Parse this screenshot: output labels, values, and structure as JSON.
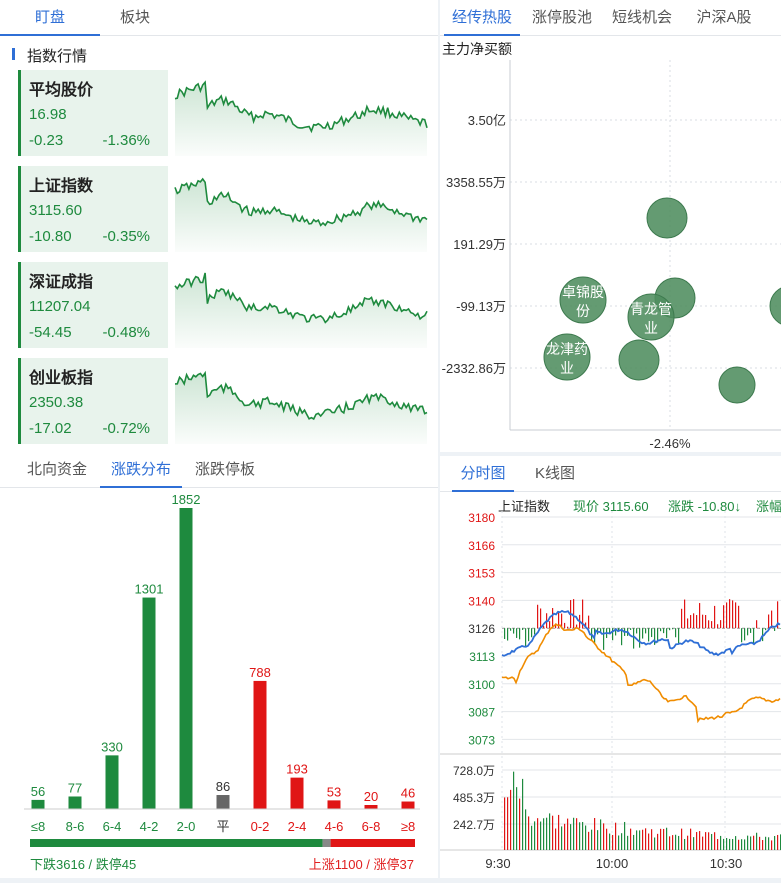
{
  "left_tabs": [
    "盯盘",
    "板块"
  ],
  "index_section_title": "指数行情",
  "indices": [
    {
      "name": "平均股价",
      "price": "16.98",
      "change": "-0.23",
      "pct": "-1.36%"
    },
    {
      "name": "上证指数",
      "price": "3115.60",
      "change": "-10.80",
      "pct": "-0.35%"
    },
    {
      "name": "深证成指",
      "price": "11207.04",
      "change": "-54.45",
      "pct": "-0.48%"
    },
    {
      "name": "创业板指",
      "price": "2350.38",
      "change": "-17.02",
      "pct": "-0.72%"
    }
  ],
  "dist_tabs": [
    "北向资金",
    "涨跌分布",
    "涨跌停板"
  ],
  "dist_chart": {
    "chart_data": {
      "type": "bar",
      "categories": [
        "≤8",
        "8-6",
        "6-4",
        "4-2",
        "2-0",
        "平",
        "0-2",
        "2-4",
        "4-6",
        "6-8",
        "≥8"
      ],
      "values": [
        56,
        77,
        330,
        1301,
        1852,
        86,
        788,
        193,
        53,
        20,
        46
      ],
      "colors": [
        "#1e8a3e",
        "#1e8a3e",
        "#1e8a3e",
        "#1e8a3e",
        "#1e8a3e",
        "#666666",
        "#e01515",
        "#e01515",
        "#e01515",
        "#e01515",
        "#e01515"
      ]
    },
    "down_text": "下跌3616 / 跌停45",
    "up_text": "上涨1100 / 涨停37",
    "down_ratio": 0.76
  },
  "right_tabs": [
    "经传热股",
    "涨停股池",
    "短线机会",
    "沪深A股"
  ],
  "bubble_chart": {
    "ylabel": "主力净买额",
    "y_ticks": [
      "3.50亿",
      "3358.55万",
      "191.29万",
      "-99.13万",
      "-2332.86万"
    ],
    "x_tick": "-2.46%",
    "bubble_labels": [
      "卓锦股份",
      "青龙管业",
      "龙津药业"
    ]
  },
  "intraday_tabs": [
    "分时图",
    "K线图"
  ],
  "intraday": {
    "index_name": "上证指数",
    "price_label": "现价 3115.60",
    "change_label": "涨跌 -10.80↓",
    "pct_label": "涨幅",
    "price_ticks": [
      "3180",
      "3166",
      "3153",
      "3140",
      "3126",
      "3113",
      "3100",
      "3087",
      "3073"
    ],
    "volume_ticks": [
      "728.0万",
      "485.3万",
      "242.7万"
    ],
    "time_ticks": [
      "9:30",
      "10:00",
      "10:30"
    ]
  },
  "colors": {
    "accent": "#2f6fd6",
    "up": "#e01515",
    "down": "#1e8a3e",
    "blue_line": "#2f6fd6",
    "orange_line": "#f08c00"
  }
}
